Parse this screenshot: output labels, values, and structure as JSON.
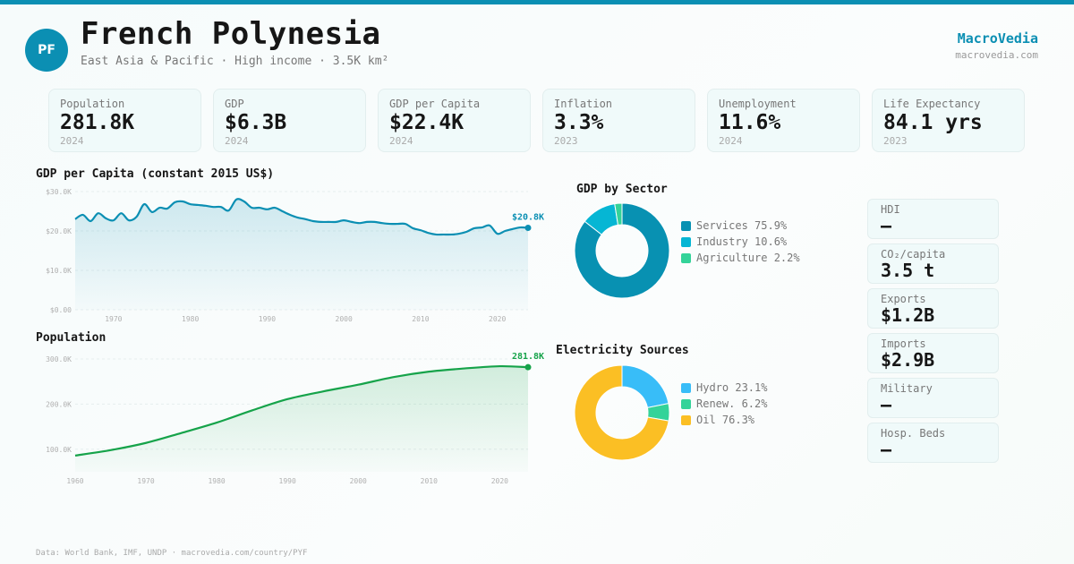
{
  "header": {
    "badge": "PF",
    "title": "French Polynesia",
    "subtitle": "East Asia & Pacific · High income · 3.5K km²",
    "brand": "MacroVedia",
    "brand_url": "macrovedia.com"
  },
  "kpis": [
    {
      "label": "Population",
      "value": "281.8K",
      "year": "2024"
    },
    {
      "label": "GDP",
      "value": "$6.3B",
      "year": "2024"
    },
    {
      "label": "GDP per Capita",
      "value": "$22.4K",
      "year": "2024"
    },
    {
      "label": "Inflation",
      "value": "3.3%",
      "year": "2023"
    },
    {
      "label": "Unemployment",
      "value": "11.6%",
      "year": "2024"
    },
    {
      "label": "Life Expectancy",
      "value": "84.1 yrs",
      "year": "2023"
    }
  ],
  "side_stats": [
    {
      "label": "HDI",
      "value": "—"
    },
    {
      "label": "CO₂/capita",
      "value": "3.5 t"
    },
    {
      "label": "Exports",
      "value": "$1.2B"
    },
    {
      "label": "Imports",
      "value": "$2.9B"
    },
    {
      "label": "Military",
      "value": "—"
    },
    {
      "label": "Hosp. Beds",
      "value": "—"
    }
  ],
  "colors": {
    "accent": "#0b8fb3",
    "gdp_line": "#0b8fb3",
    "pop_line": "#16a34a",
    "services": "#0891b2",
    "industry": "#06b6d4",
    "agriculture": "#34d399",
    "hydro": "#38bdf8",
    "renewables": "#34d399",
    "oil": "#fbbf24"
  },
  "footer": "Data: World Bank, IMF, UNDP · macrovedia.com/country/PYF",
  "chart_data": [
    {
      "id": "gdp_per_capita",
      "type": "area",
      "title": "GDP per Capita (constant 2015 US$)",
      "xlabel": "",
      "ylabel": "",
      "x": [
        1965,
        1966,
        1967,
        1968,
        1969,
        1970,
        1971,
        1972,
        1973,
        1974,
        1975,
        1976,
        1977,
        1978,
        1979,
        1980,
        1981,
        1982,
        1983,
        1984,
        1985,
        1986,
        1987,
        1988,
        1989,
        1990,
        1991,
        1992,
        1993,
        1994,
        1995,
        1996,
        1997,
        1998,
        1999,
        2000,
        2001,
        2002,
        2003,
        2004,
        2005,
        2006,
        2007,
        2008,
        2009,
        2010,
        2011,
        2012,
        2013,
        2014,
        2015,
        2016,
        2017,
        2018,
        2019,
        2020,
        2021,
        2022,
        2023,
        2024
      ],
      "values": [
        23.0,
        24.1,
        22.5,
        24.5,
        23.2,
        22.7,
        24.5,
        22.7,
        23.6,
        26.8,
        24.8,
        25.9,
        25.7,
        27.3,
        27.5,
        26.8,
        26.6,
        26.4,
        26.1,
        26.1,
        25.2,
        28.0,
        27.5,
        25.9,
        25.9,
        25.5,
        25.9,
        25.0,
        24.1,
        23.4,
        23.0,
        22.5,
        22.3,
        22.3,
        22.3,
        22.7,
        22.3,
        22.0,
        22.3,
        22.3,
        22.0,
        21.8,
        21.8,
        21.8,
        20.7,
        20.2,
        19.5,
        19.1,
        19.1,
        19.1,
        19.3,
        19.8,
        20.7,
        20.9,
        21.4,
        19.3,
        20.0,
        20.5,
        20.9,
        20.8
      ],
      "unit": "thousand US$",
      "ylim": [
        0,
        30
      ],
      "yticks": [
        "$0.00",
        "$10.0K",
        "$20.0K",
        "$30.0K"
      ],
      "ytick_values": [
        0,
        10,
        20,
        30
      ],
      "xticks": [
        1970,
        1980,
        1990,
        2000,
        2010,
        2020
      ],
      "last_label": "$20.8K",
      "grid": true
    },
    {
      "id": "population",
      "type": "area",
      "title": "Population",
      "xlabel": "",
      "ylabel": "",
      "x": [
        1960,
        1965,
        1970,
        1975,
        1980,
        1985,
        1990,
        1995,
        2000,
        2005,
        2010,
        2015,
        2020,
        2024
      ],
      "values": [
        86,
        98,
        114,
        136,
        159,
        186,
        211,
        228,
        243,
        260,
        272,
        279,
        284,
        281.8
      ],
      "unit": "thousand people",
      "ylim": [
        50,
        300
      ],
      "yticks": [
        "100.0K",
        "200.0K",
        "300.0K"
      ],
      "ytick_values": [
        100,
        200,
        300
      ],
      "xticks": [
        1960,
        1970,
        1980,
        1990,
        2000,
        2010,
        2020
      ],
      "last_label": "281.8K",
      "grid": true
    },
    {
      "id": "gdp_by_sector",
      "type": "pie",
      "title": "GDP by Sector",
      "categories": [
        "Services",
        "Industry",
        "Agriculture"
      ],
      "values": [
        75.9,
        10.6,
        2.2
      ],
      "labels": [
        "Services 75.9%",
        "Industry 10.6%",
        "Agriculture 2.2%"
      ],
      "legend": "right"
    },
    {
      "id": "electricity_sources",
      "type": "pie",
      "title": "Electricity Sources",
      "categories": [
        "Hydro",
        "Renew.",
        "Oil"
      ],
      "values": [
        23.1,
        6.2,
        76.3
      ],
      "labels": [
        "Hydro 23.1%",
        "Renew. 6.2%",
        "Oil 76.3%"
      ],
      "legend": "right"
    }
  ]
}
